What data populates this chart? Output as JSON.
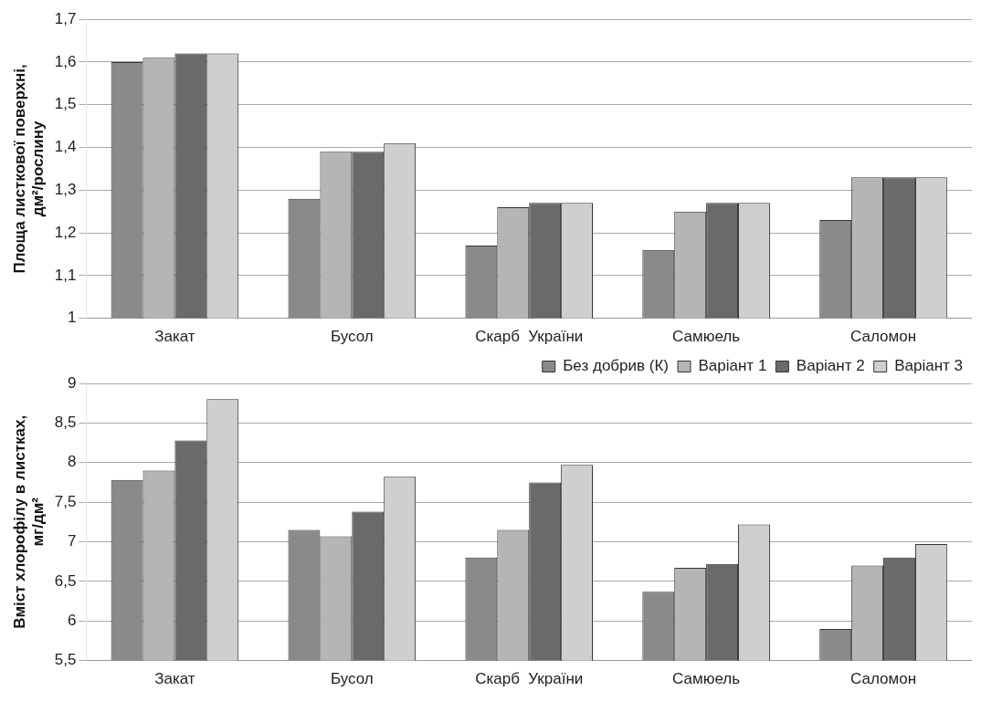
{
  "chart_data": [
    {
      "type": "bar",
      "ylabel": "Площа листкової поверхні, дм²/рослину",
      "categories": [
        "Закат",
        "Бусол",
        "Скарб  України",
        "Самюель",
        "Саломон"
      ],
      "ylim": [
        1,
        1.7
      ],
      "yticks": [
        1,
        {
          "value": 1.1,
          "label": "1,1"
        },
        {
          "value": 1.2,
          "label": "1,2"
        },
        {
          "value": 1.3,
          "label": "1,3"
        },
        {
          "value": 1.4,
          "label": "1,4"
        },
        {
          "value": 1.5,
          "label": "1,5"
        },
        {
          "value": 1.6,
          "label": "1,6"
        },
        {
          "value": 1.7,
          "label": "1,7"
        }
      ],
      "grid": "y",
      "legend": false,
      "series": [
        {
          "color": "#8a8a8a",
          "values": [
            1.6,
            1.28,
            1.17,
            1.16,
            1.23
          ]
        },
        {
          "color": "#b5b5b5",
          "values": [
            1.61,
            1.39,
            1.26,
            1.25,
            1.33
          ]
        },
        {
          "color": "#6a6a6a",
          "values": [
            1.62,
            1.39,
            1.27,
            1.27,
            1.33
          ]
        },
        {
          "color": "#cfcfcf",
          "values": [
            1.62,
            1.41,
            1.27,
            1.27,
            1.33
          ]
        }
      ]
    },
    {
      "type": "bar",
      "ylabel": "Вміст хлорофілу в листках, мг/дм²",
      "categories": [
        "Закат",
        "Бусол",
        "Скарб  України",
        "Самюель",
        "Саломон"
      ],
      "ylim": [
        5.5,
        9
      ],
      "yticks": [
        {
          "value": 5.5,
          "label": "5,5"
        },
        6,
        {
          "value": 6.5,
          "label": "6,5"
        },
        7,
        {
          "value": 7.5,
          "label": "7,5"
        },
        8,
        {
          "value": 8.5,
          "label": "8,5"
        },
        9
      ],
      "grid": "y",
      "legend": "top right",
      "series": [
        {
          "name": "Без добрив (К)",
          "color": "#8a8a8a",
          "values": [
            7.78,
            7.15,
            6.8,
            6.37,
            5.9
          ]
        },
        {
          "name": "Варіант 1",
          "color": "#b5b5b5",
          "values": [
            7.9,
            7.07,
            7.15,
            6.67,
            6.7
          ]
        },
        {
          "name": "Варіант 2",
          "color": "#6a6a6a",
          "values": [
            8.28,
            7.38,
            7.75,
            6.72,
            6.8
          ]
        },
        {
          "name": "Варіант 3",
          "color": "#cfcfcf",
          "values": [
            8.8,
            7.82,
            7.97,
            7.22,
            6.97
          ]
        }
      ]
    }
  ]
}
